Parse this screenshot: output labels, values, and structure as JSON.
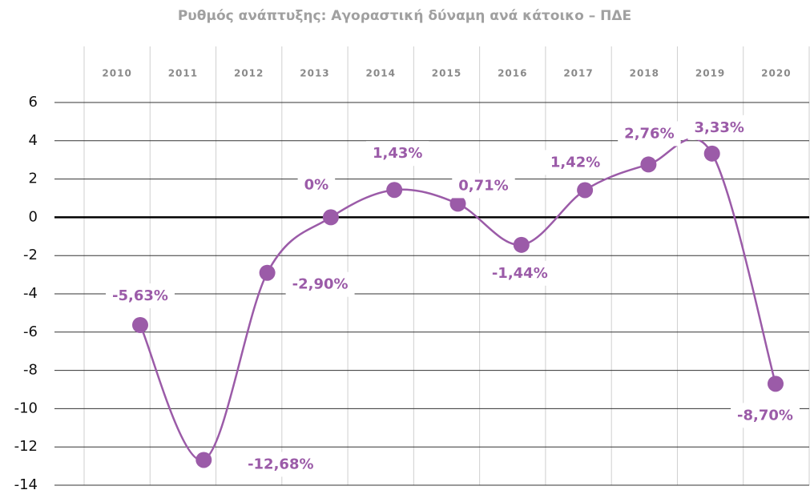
{
  "chart_data": {
    "type": "line",
    "title": "Ρυθμός ανάπτυξης: Αγοραστική δύναμη ανά κάτοικο – ΠΔΕ",
    "categories": [
      "2010",
      "2011",
      "2012",
      "2013",
      "2014",
      "2015",
      "2016",
      "2017",
      "2018",
      "2019",
      "2020"
    ],
    "values": [
      -5.63,
      -12.68,
      -2.9,
      0,
      1.43,
      0.71,
      -1.44,
      1.42,
      2.76,
      3.33,
      -8.7
    ],
    "value_labels": [
      "-5,63%",
      "-12,68%",
      "-2,90%",
      "0%",
      "1,43%",
      "0,71%",
      "-1,44%",
      "1,42%",
      "2,76%",
      "3,33%",
      "-8,70%"
    ],
    "color": "#9b5ba8",
    "ylim": [
      -14,
      6
    ],
    "yticks": [
      -14,
      -12,
      -10,
      -8,
      -6,
      -4,
      -2,
      0,
      2,
      4,
      6
    ],
    "grid": true
  }
}
